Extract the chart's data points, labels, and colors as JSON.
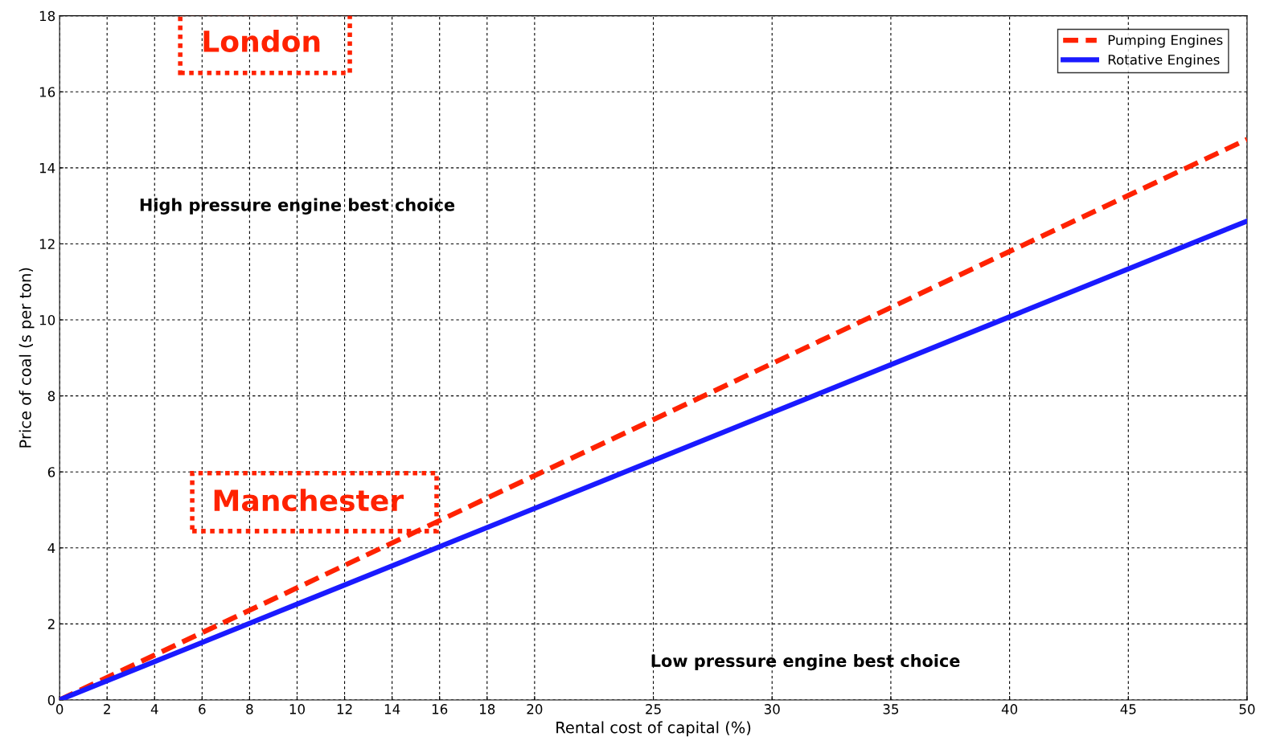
{
  "chart_data": {
    "type": "line",
    "xlabel": "Rental cost of capital (%)",
    "ylabel": "Price of coal (s per ton)",
    "series": [
      {
        "name": "Pumping Engines",
        "color": "#ff2200",
        "line_style": "dashed",
        "x": [
          0,
          10,
          20,
          30,
          40,
          50
        ],
        "values": [
          0,
          2.95,
          5.9,
          8.85,
          11.8,
          14.75
        ]
      },
      {
        "name": "Rotative Engines",
        "color": "#1a1aff",
        "line_style": "solid",
        "x": [
          0,
          10,
          20,
          30,
          40,
          50
        ],
        "values": [
          0,
          2.52,
          5.04,
          7.56,
          10.08,
          12.6
        ]
      }
    ],
    "xlim": [
      0,
      50
    ],
    "xticks": [
      0,
      2,
      4,
      6,
      8,
      10,
      12,
      14,
      16,
      18,
      20,
      25,
      30,
      35,
      40,
      45,
      50
    ],
    "ylim": [
      0,
      18
    ],
    "yticks": [
      0,
      2,
      4,
      6,
      8,
      10,
      12,
      14,
      16,
      18
    ],
    "annotations": [
      "London",
      "High pressure engine best choice",
      "Manchester",
      "Low pressure engine best choice"
    ],
    "grid": true,
    "legend": "top right",
    "marker": "none"
  }
}
